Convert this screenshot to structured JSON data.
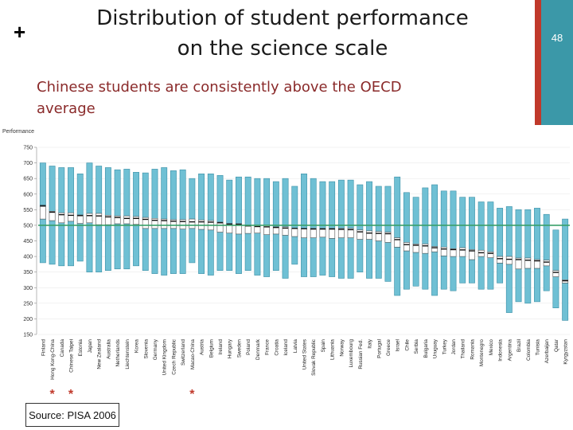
{
  "slide": {
    "title_line1": "Distribution of student performance",
    "title_line2": "on the science scale",
    "subtitle": "Chinese students are consistently above the OECD average",
    "page_number": "48",
    "source": "Source: PISA 2006",
    "plus_glyph": "+",
    "star_glyph": "*"
  },
  "colors": {
    "box_fill": "#6fc0d4",
    "box_stroke": "#3b8fa6",
    "average_line": "#3aa06a",
    "accent_red": "#c0392b",
    "accent_teal": "#3b98a8"
  },
  "chart_data": {
    "type": "box",
    "ylabel": "Performance",
    "ylim": [
      150,
      750
    ],
    "yticks": [
      150,
      200,
      250,
      300,
      350,
      400,
      450,
      500,
      550,
      600,
      650,
      700,
      750
    ],
    "reference_line": 500,
    "starred_categories": [
      "Hong Kong-China",
      "Chinese Taipei",
      "Macao-China"
    ],
    "categories": [
      "Finland",
      "Hong Kong-China",
      "Canada",
      "Chinese Taipei",
      "Estonia",
      "Japan",
      "New Zealand",
      "Australia",
      "Netherlands",
      "Liechtenstein",
      "Korea",
      "Slovenia",
      "Germany",
      "United Kingdom",
      "Czech Republic",
      "Switzerland",
      "Macao-China",
      "Austria",
      "Belgium",
      "Ireland",
      "Hungary",
      "Sweden",
      "Poland",
      "Denmark",
      "France",
      "Croatia",
      "Iceland",
      "Latvia",
      "United States",
      "Slovak Republic",
      "Spain",
      "Lithuania",
      "Norway",
      "Luxembourg",
      "Russian Fed.",
      "Italy",
      "Portugal",
      "Greece",
      "Israel",
      "Chile",
      "Serbia",
      "Bulgaria",
      "Uruguay",
      "Turkey",
      "Jordan",
      "Thailand",
      "Romania",
      "Montenegro",
      "Mexico",
      "Indonesia",
      "Argentina",
      "Brazil",
      "Colombia",
      "Tunisia",
      "Azerbaijan",
      "Qatar",
      "Kyrgyzstan"
    ],
    "high": [
      700,
      690,
      685,
      685,
      665,
      700,
      690,
      685,
      678,
      680,
      670,
      668,
      680,
      685,
      675,
      678,
      650,
      665,
      665,
      660,
      645,
      655,
      655,
      650,
      650,
      640,
      650,
      625,
      665,
      650,
      640,
      640,
      645,
      645,
      630,
      640,
      625,
      625,
      655,
      605,
      590,
      620,
      630,
      610,
      610,
      590,
      590,
      575,
      575,
      555,
      560,
      550,
      550,
      555,
      535,
      485,
      520
    ],
    "p25": [
      520,
      515,
      508,
      513,
      506,
      508,
      502,
      502,
      505,
      505,
      503,
      490,
      490,
      490,
      490,
      488,
      490,
      487,
      485,
      478,
      475,
      472,
      474,
      475,
      470,
      472,
      468,
      464,
      460,
      460,
      462,
      458,
      460,
      460,
      455,
      455,
      450,
      445,
      430,
      418,
      413,
      410,
      415,
      402,
      400,
      400,
      390,
      400,
      396,
      379,
      375,
      360,
      362,
      362,
      370,
      335,
      315
    ],
    "mean": [
      563,
      542,
      534,
      532,
      531,
      531,
      530,
      527,
      525,
      522,
      522,
      519,
      516,
      515,
      513,
      512,
      511,
      511,
      510,
      508,
      504,
      503,
      498,
      496,
      495,
      493,
      491,
      490,
      489,
      488,
      488,
      488,
      487,
      486,
      479,
      475,
      474,
      473,
      454,
      438,
      436,
      434,
      428,
      424,
      422,
      421,
      418,
      412,
      410,
      393,
      391,
      390,
      388,
      386,
      382,
      349,
      322
    ],
    "p75": [
      560,
      545,
      540,
      540,
      533,
      538,
      538,
      532,
      530,
      530,
      528,
      525,
      522,
      520,
      518,
      518,
      520,
      517,
      515,
      510,
      505,
      505,
      500,
      500,
      500,
      495,
      495,
      490,
      490,
      490,
      490,
      490,
      490,
      490,
      485,
      482,
      480,
      478,
      460,
      445,
      440,
      440,
      432,
      430,
      425,
      428,
      422,
      420,
      415,
      400,
      400,
      395,
      395,
      390,
      388,
      355,
      325
    ],
    "low": [
      380,
      375,
      370,
      370,
      385,
      350,
      350,
      355,
      360,
      360,
      370,
      355,
      345,
      340,
      345,
      345,
      380,
      345,
      340,
      355,
      355,
      345,
      355,
      340,
      335,
      355,
      330,
      375,
      335,
      335,
      340,
      335,
      330,
      330,
      350,
      330,
      330,
      320,
      275,
      295,
      305,
      295,
      275,
      295,
      290,
      315,
      315,
      295,
      295,
      315,
      220,
      255,
      250,
      255,
      290,
      235,
      195
    ]
  }
}
